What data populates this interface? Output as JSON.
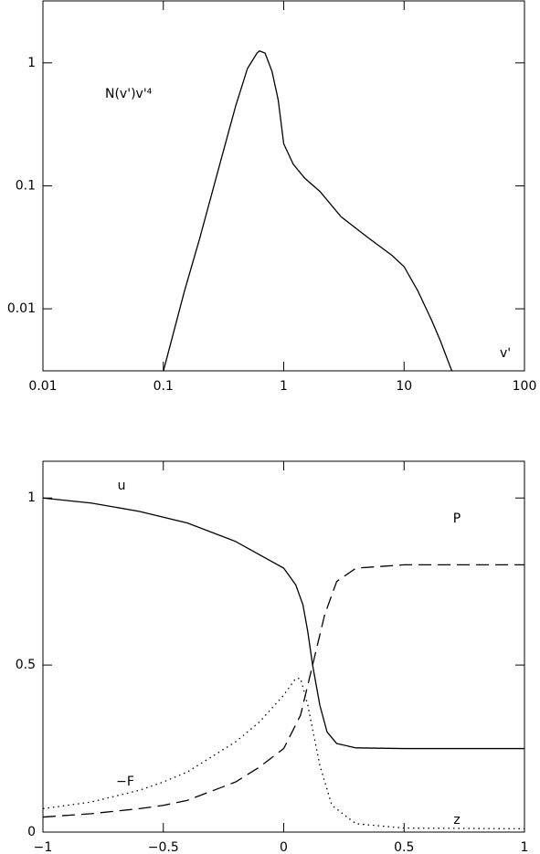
{
  "chart_data": [
    {
      "type": "line",
      "xlog": true,
      "ylog": true,
      "xlim": [
        0.01,
        100
      ],
      "ylim": [
        0.00313,
        3.19
      ],
      "xticks": [
        0.01,
        0.1,
        1,
        10,
        100
      ],
      "yticks": [
        0.01,
        0.1,
        1
      ],
      "xlabel": "v'",
      "ylabel": "N(v')v'⁴",
      "series": [
        {
          "color": "#000000",
          "dash": "solid",
          "x": [
            0.1,
            0.15,
            0.2,
            0.3,
            0.4,
            0.5,
            0.6,
            0.63,
            0.7,
            0.8,
            0.9,
            1.0,
            1.2,
            1.5,
            2,
            3,
            5,
            8,
            10,
            13,
            17,
            20,
            25
          ],
          "values": [
            0.0031,
            0.014,
            0.037,
            0.16,
            0.45,
            0.9,
            1.2,
            1.25,
            1.2,
            0.85,
            0.5,
            0.22,
            0.15,
            0.115,
            0.09,
            0.056,
            0.038,
            0.027,
            0.022,
            0.014,
            0.008,
            0.0055,
            0.0031
          ]
        }
      ]
    },
    {
      "type": "line",
      "xlog": false,
      "ylog": false,
      "xlim": [
        -1,
        1
      ],
      "ylim": [
        0,
        1.11
      ],
      "xticks": [
        {
          "value": -1,
          "label": "−1"
        },
        {
          "value": -0.5,
          "label": "−0.5"
        },
        0,
        0.5,
        1
      ],
      "yticks": [
        0,
        0.5,
        1
      ],
      "annotations": [
        "z"
      ],
      "series": [
        {
          "name": "u",
          "color": "#000000",
          "dash": "solid",
          "x": [
            -1,
            -0.8,
            -0.6,
            -0.4,
            -0.2,
            -0.1,
            0,
            0.05,
            0.08,
            0.1,
            0.12,
            0.15,
            0.18,
            0.22,
            0.3,
            0.5,
            1
          ],
          "values": [
            1.0,
            0.985,
            0.96,
            0.925,
            0.87,
            0.83,
            0.79,
            0.74,
            0.68,
            0.6,
            0.5,
            0.38,
            0.3,
            0.265,
            0.252,
            0.25,
            0.25
          ]
        },
        {
          "name": "P",
          "color": "#000000",
          "dash": "dashed",
          "x": [
            -1,
            -0.8,
            -0.6,
            -0.5,
            -0.4,
            -0.2,
            -0.1,
            0,
            0.07,
            0.12,
            0.17,
            0.22,
            0.3,
            0.5,
            1
          ],
          "values": [
            0.045,
            0.055,
            0.07,
            0.08,
            0.095,
            0.15,
            0.195,
            0.25,
            0.35,
            0.5,
            0.65,
            0.75,
            0.79,
            0.8,
            0.8
          ]
        },
        {
          "name": "−F",
          "color": "#000000",
          "dash": "dotted",
          "x": [
            -1,
            -0.8,
            -0.6,
            -0.5,
            -0.4,
            -0.2,
            -0.1,
            0,
            0.05,
            0.07,
            0.1,
            0.15,
            0.2,
            0.3,
            0.5,
            1
          ],
          "values": [
            0.07,
            0.09,
            0.125,
            0.15,
            0.18,
            0.27,
            0.33,
            0.41,
            0.46,
            0.46,
            0.38,
            0.2,
            0.08,
            0.025,
            0.012,
            0.01
          ]
        }
      ]
    }
  ]
}
